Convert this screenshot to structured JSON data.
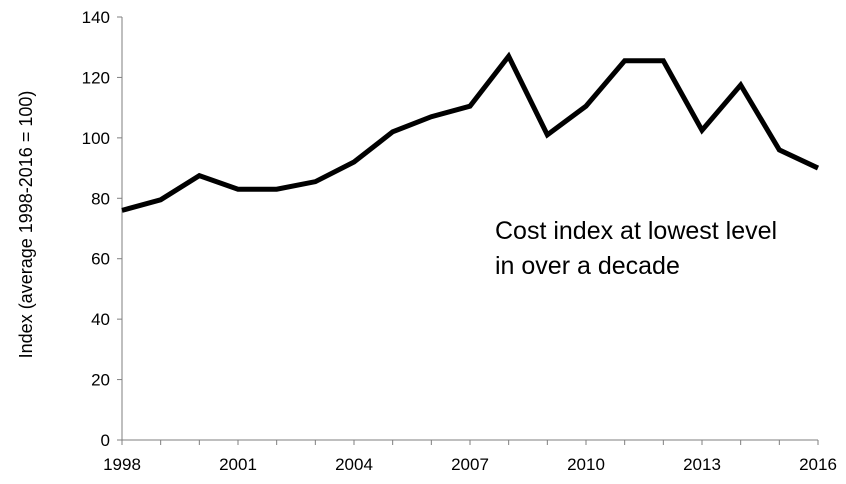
{
  "chart_data": {
    "type": "line",
    "title": "",
    "xlabel": "",
    "ylabel": "Index (average 1998-2016 = 100)",
    "x": [
      1998,
      1999,
      2000,
      2001,
      2002,
      2003,
      2004,
      2005,
      2006,
      2007,
      2008,
      2009,
      2010,
      2011,
      2012,
      2013,
      2014,
      2015,
      2016
    ],
    "series": [
      {
        "values": [
          76,
          79.5,
          87.5,
          83,
          83,
          85.5,
          92,
          102,
          107,
          110.5,
          127,
          101,
          110.5,
          125.5,
          125.5,
          102.5,
          117.5,
          96,
          90
        ],
        "color": "#000000"
      }
    ],
    "xlim": [
      1998,
      2016
    ],
    "ylim": [
      0,
      140
    ],
    "x_ticks": [
      "1998",
      "2001",
      "2004",
      "2007",
      "2010",
      "2013",
      "2016"
    ],
    "y_ticks": [
      "0",
      "20",
      "40",
      "60",
      "80",
      "100",
      "120",
      "140"
    ],
    "grid": false,
    "legend": "none",
    "annotation": {
      "lines": [
        "Cost index at lowest level",
        "in over a decade"
      ]
    }
  }
}
